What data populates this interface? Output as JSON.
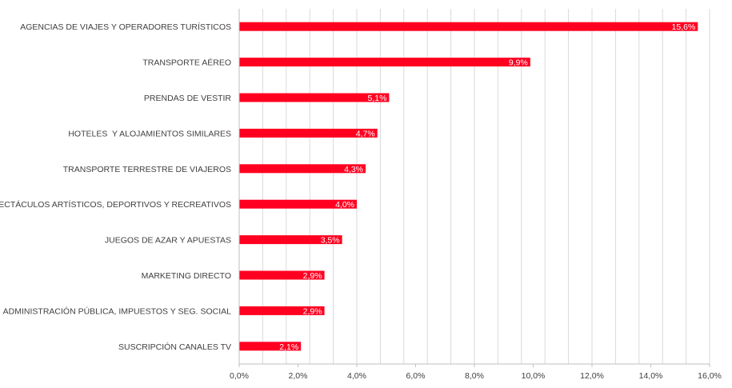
{
  "chart_data": {
    "type": "bar",
    "orientation": "horizontal",
    "categories": [
      "AGENCIAS DE VIAJES Y OPERADORES TURÍSTICOS",
      "TRANSPORTE AÉREO",
      "PRENDAS DE VESTIR",
      "HOTELES  Y ALOJAMIENTOS SIMILARES",
      "TRANSPORTE TERRESTRE DE VIAJEROS",
      "ESPECTÁCULOS ARTÍSTICOS, DEPORTIVOS Y RECREATIVOS",
      "JUEGOS DE AZAR Y APUESTAS",
      "MARKETING DIRECTO",
      "ADMINISTRACIÓN PÚBLICA, IMPUESTOS Y SEG. SOCIAL",
      "SUSCRIPCIÓN CANALES TV"
    ],
    "values": [
      15.6,
      9.9,
      5.1,
      4.7,
      4.3,
      4.0,
      3.5,
      2.9,
      2.9,
      2.1
    ],
    "data_labels": [
      "15,6%",
      "9,9%",
      "5,1%",
      "4,7%",
      "4,3%",
      "4,0%",
      "3,5%",
      "2,9%",
      "2,9%",
      "2,1%"
    ],
    "xlim": [
      0,
      16
    ],
    "x_ticks": [
      0,
      2,
      4,
      6,
      8,
      10,
      12,
      14,
      16
    ],
    "x_tick_labels": [
      "0,0%",
      "2,0%",
      "4,0%",
      "6,0%",
      "8,0%",
      "10,0%",
      "12,0%",
      "14,0%",
      "16,0%"
    ],
    "title": "",
    "xlabel": "",
    "ylabel": "",
    "grid": true,
    "legend": false,
    "colors": {
      "bar": "#ff0021",
      "grid": "#d9d9d9",
      "axis": "#bfbfbf",
      "text": "#404040",
      "data_label": "#ffffff"
    }
  }
}
